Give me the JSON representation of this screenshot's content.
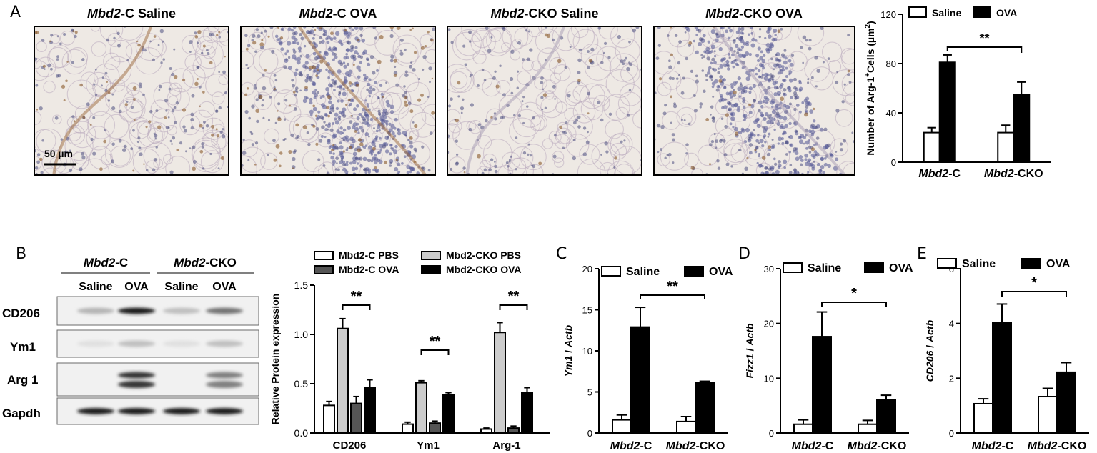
{
  "panel_letters": [
    "A",
    "B",
    "C",
    "D",
    "E"
  ],
  "micrographs": [
    {
      "gene": "Mbd2",
      "rest": "-C Saline",
      "tone": "light",
      "stain": 0.35
    },
    {
      "gene": "Mbd2",
      "rest": "-C OVA",
      "tone": "dense",
      "stain": 0.55
    },
    {
      "gene": "Mbd2",
      "rest": "-CKO Saline",
      "tone": "light",
      "stain": 0.1
    },
    {
      "gene": "Mbd2",
      "rest": "-CKO OVA",
      "tone": "dense",
      "stain": 0.15
    }
  ],
  "scale_bar_label": "50 µm",
  "western_blot": {
    "group_headers": [
      {
        "gene": "Mbd2",
        "rest": "-C"
      },
      {
        "gene": "Mbd2",
        "rest": "-CKO"
      }
    ],
    "lane_labels": [
      "Saline",
      "OVA",
      "Saline",
      "OVA"
    ],
    "rows": [
      {
        "label": "CD206",
        "intensities": [
          0.25,
          0.95,
          0.2,
          0.55
        ],
        "double": false
      },
      {
        "label": "Ym1",
        "intensities": [
          0.05,
          0.2,
          0.05,
          0.2
        ],
        "double": false
      },
      {
        "label": "Arg 1",
        "intensities": [
          0.0,
          0.85,
          0.0,
          0.5
        ],
        "double": true
      },
      {
        "label": "Gapdh",
        "intensities": [
          0.95,
          0.95,
          0.95,
          0.95
        ],
        "double": false
      }
    ]
  },
  "chart_data": [
    {
      "id": "A",
      "type": "bar",
      "categories": [
        {
          "gene": "Mbd2",
          "rest": "-C"
        },
        {
          "gene": "Mbd2",
          "rest": "-CKO"
        }
      ],
      "series": [
        {
          "name": "Saline",
          "fill": "#ffffff",
          "values": [
            24,
            24
          ],
          "errors": [
            4,
            6
          ]
        },
        {
          "name": "OVA",
          "fill": "#000000",
          "values": [
            81,
            55
          ],
          "errors": [
            6,
            10
          ]
        }
      ],
      "ylabel_pre": "Number of Arg-1",
      "ylabel_sup1": "+",
      "ylabel_mid": "Cells (µm",
      "ylabel_sup2": "2",
      "ylabel_post": ")",
      "ylim": [
        0,
        120
      ],
      "yticks": [
        0,
        40,
        80,
        120
      ],
      "significance": [
        {
          "label": "**",
          "from": [
            0,
            1
          ],
          "to": [
            1,
            1
          ]
        }
      ]
    },
    {
      "id": "B",
      "type": "bar",
      "categories": [
        "CD206",
        "Ym1",
        "Arg-1"
      ],
      "series": [
        {
          "name": "Mbd2-C PBS",
          "fill": "#ffffff",
          "values": [
            0.28,
            0.09,
            0.04
          ],
          "errors": [
            0.04,
            0.02,
            0.01
          ]
        },
        {
          "name": "Mbd2-CKO PBS",
          "fill": "#cccccc",
          "values": [
            1.06,
            0.51,
            1.02
          ],
          "errors": [
            0.1,
            0.02,
            0.1
          ]
        },
        {
          "name": "Mbd2-C OVA",
          "fill": "#555555",
          "values": [
            0.3,
            0.1,
            0.05
          ],
          "errors": [
            0.07,
            0.02,
            0.02
          ]
        },
        {
          "name": "Mbd2-CKO OVA",
          "fill": "#000000",
          "values": [
            0.46,
            0.39,
            0.41
          ],
          "errors": [
            0.08,
            0.02,
            0.05
          ]
        }
      ],
      "ylabel": "Relative Protein expression",
      "ylim": [
        0,
        1.5
      ],
      "yticks": [
        0.0,
        0.5,
        1.0,
        1.5
      ],
      "significance": [
        {
          "label": "**",
          "from": [
            0,
            1
          ],
          "to": [
            0,
            3
          ]
        },
        {
          "label": "**",
          "from": [
            1,
            1
          ],
          "to": [
            1,
            3
          ]
        },
        {
          "label": "**",
          "from": [
            2,
            1
          ],
          "to": [
            2,
            3
          ]
        }
      ]
    },
    {
      "id": "C",
      "type": "bar",
      "categories": [
        {
          "gene": "Mbd2",
          "rest": "-C"
        },
        {
          "gene": "Mbd2",
          "rest": "-CKO"
        }
      ],
      "series": [
        {
          "name": "Saline",
          "fill": "#ffffff",
          "values": [
            1.6,
            1.4
          ],
          "errors": [
            0.6,
            0.6
          ]
        },
        {
          "name": "OVA",
          "fill": "#000000",
          "values": [
            12.9,
            6.1
          ],
          "errors": [
            2.4,
            0.2
          ]
        }
      ],
      "ylabel_gene": "Ym1",
      "ylabel_ref": "Actb",
      "ylim": [
        0,
        20
      ],
      "yticks": [
        0,
        5,
        10,
        15,
        20
      ],
      "significance": [
        {
          "label": "**",
          "from": [
            0,
            1
          ],
          "to": [
            1,
            1
          ]
        }
      ]
    },
    {
      "id": "D",
      "type": "bar",
      "categories": [
        {
          "gene": "Mbd2",
          "rest": "-C"
        },
        {
          "gene": "Mbd2",
          "rest": "-CKO"
        }
      ],
      "series": [
        {
          "name": "Saline",
          "fill": "#ffffff",
          "values": [
            1.6,
            1.6
          ],
          "errors": [
            0.8,
            0.7
          ]
        },
        {
          "name": "OVA",
          "fill": "#000000",
          "values": [
            17.6,
            6.0
          ],
          "errors": [
            4.5,
            0.9
          ]
        }
      ],
      "ylabel_gene": "Fizz1",
      "ylabel_ref": "Actb",
      "ylim": [
        0,
        30
      ],
      "yticks": [
        0,
        10,
        20,
        30
      ],
      "significance": [
        {
          "label": "*",
          "from": [
            0,
            1
          ],
          "to": [
            1,
            1
          ]
        }
      ]
    },
    {
      "id": "E",
      "type": "bar",
      "categories": [
        {
          "gene": "Mbd2",
          "rest": "-C"
        },
        {
          "gene": "Mbd2",
          "rest": "-CKO"
        }
      ],
      "series": [
        {
          "name": "Saline",
          "fill": "#ffffff",
          "values": [
            1.07,
            1.33
          ],
          "errors": [
            0.18,
            0.3
          ]
        },
        {
          "name": "OVA",
          "fill": "#000000",
          "values": [
            4.03,
            2.22
          ],
          "errors": [
            0.68,
            0.35
          ]
        }
      ],
      "ylabel_gene": "CD206",
      "ylabel_ref": "Actb",
      "ylim": [
        0,
        6
      ],
      "yticks": [
        0,
        2,
        4,
        6
      ],
      "significance": [
        {
          "label": "*",
          "from": [
            0,
            1
          ],
          "to": [
            1,
            1
          ]
        }
      ]
    }
  ]
}
